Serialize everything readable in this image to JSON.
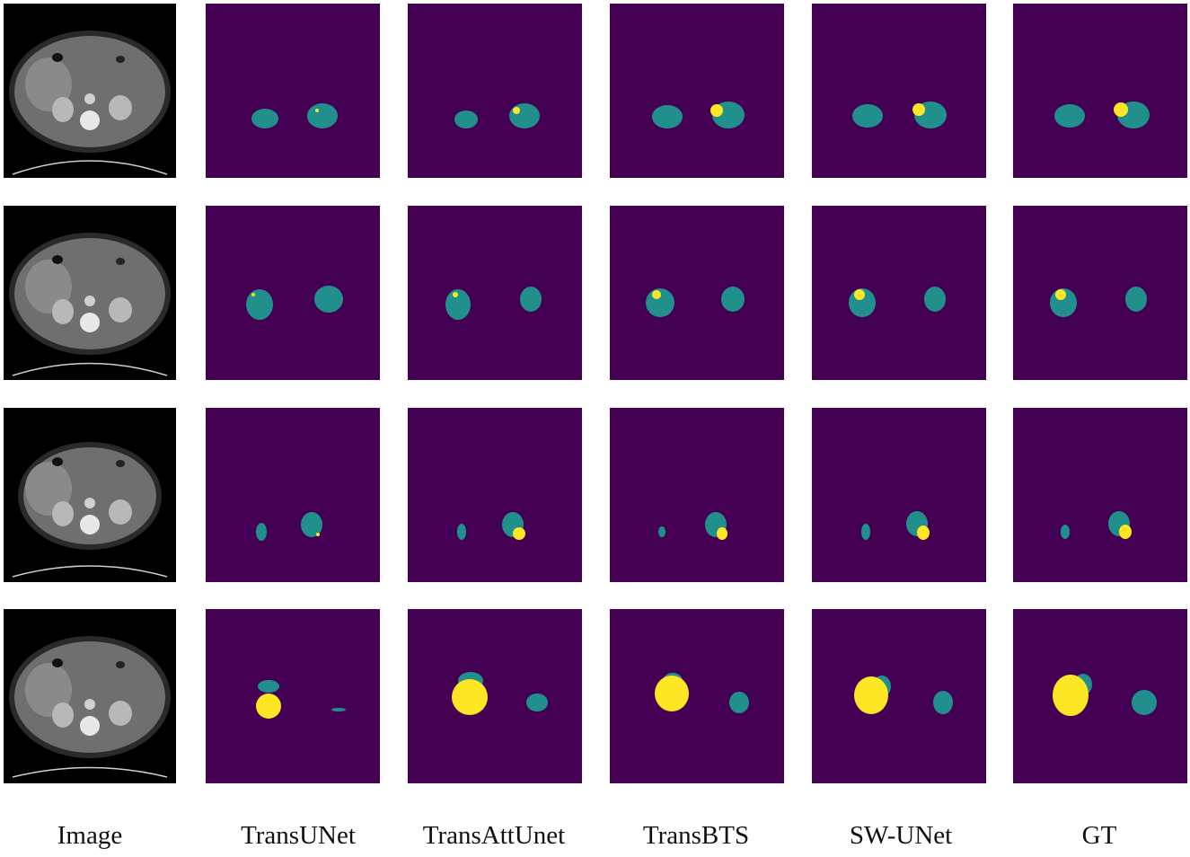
{
  "columns": [
    "Image",
    "TransUNet",
    "TransAttUnet",
    "TransBTS",
    "SW-UNet",
    "GT"
  ],
  "colors": {
    "background": "#440154",
    "kidney": "#21908d",
    "tumor": "#fde725",
    "ct_bg": "#000000",
    "ct_body": "#6f6f6f",
    "ct_bone": "#e8e8e8"
  },
  "rows": [
    {
      "row": 1,
      "description_icons": "ct-slice-1"
    },
    {
      "row": 2,
      "description_icons": "ct-slice-2"
    },
    {
      "row": 3,
      "description_icons": "ct-slice-3"
    },
    {
      "row": 4,
      "description_icons": "ct-slice-4"
    }
  ]
}
